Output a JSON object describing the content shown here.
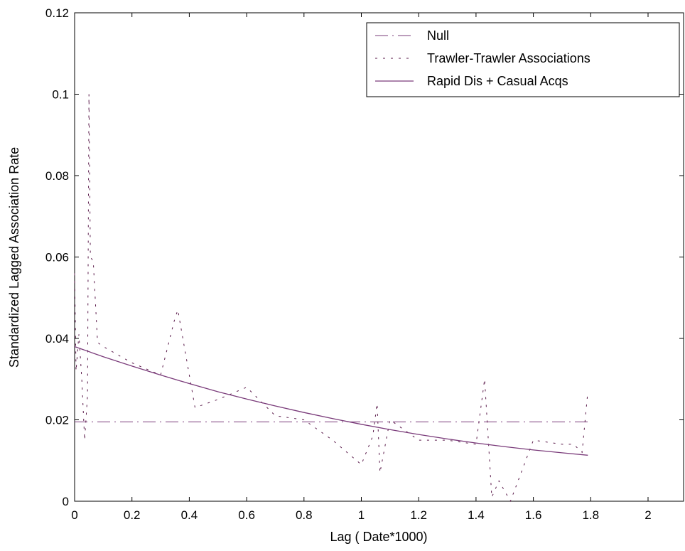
{
  "chart_data": {
    "type": "line",
    "title": "",
    "xlabel": "Lag ( Date*1000)",
    "ylabel": "Standardized Lagged Association Rate",
    "xlim": [
      0,
      2.1
    ],
    "ylim": [
      0,
      0.12
    ],
    "xticks": [
      0,
      0.2,
      0.4,
      0.6,
      0.8,
      1,
      1.2,
      1.4,
      1.6,
      1.8,
      2
    ],
    "xtick_labels": [
      "0",
      "0.2",
      "0.4",
      "0.6",
      "0.8",
      "1",
      "1.2",
      "1.4",
      "1.6",
      "1.8",
      "2"
    ],
    "yticks": [
      0,
      0.02,
      0.04,
      0.06,
      0.08,
      0.1,
      0.12
    ],
    "ytick_labels": [
      "0",
      "0.02",
      "0.04",
      "0.06",
      "0.08",
      "0.1",
      "0.12"
    ],
    "grid": false,
    "legend_position": "top-right",
    "series": [
      {
        "name": "Null",
        "style": "dash-dot",
        "color": "#7a3b7a",
        "x": [
          0,
          1.79
        ],
        "y": [
          0.0195,
          0.0195
        ]
      },
      {
        "name": "Trawler-Trawler Associations",
        "style": "dotted",
        "color": "#5a1a4a",
        "x": [
          0.0,
          0.005,
          0.015,
          0.025,
          0.035,
          0.045,
          0.05,
          0.055,
          0.065,
          0.08,
          0.1,
          0.2,
          0.3,
          0.35,
          0.36,
          0.42,
          0.5,
          0.6,
          0.7,
          0.8,
          0.9,
          1.0,
          1.04,
          1.055,
          1.065,
          1.1,
          1.2,
          1.3,
          1.4,
          1.43,
          1.455,
          1.48,
          1.52,
          1.6,
          1.7,
          1.74,
          1.77,
          1.79
        ],
        "y": [
          0.056,
          0.032,
          0.041,
          0.03,
          0.015,
          0.026,
          0.1,
          0.06,
          0.059,
          0.039,
          0.038,
          0.034,
          0.031,
          0.045,
          0.047,
          0.023,
          0.025,
          0.028,
          0.021,
          0.02,
          0.015,
          0.009,
          0.016,
          0.024,
          0.007,
          0.02,
          0.015,
          0.015,
          0.014,
          0.03,
          0.001,
          0.005,
          0.0,
          0.015,
          0.014,
          0.014,
          0.012,
          0.027
        ]
      },
      {
        "name": "Rapid Dis + Casual Acqs",
        "style": "solid",
        "color": "#7a3b7a",
        "x": [
          0,
          0.1,
          0.2,
          0.3,
          0.4,
          0.5,
          0.6,
          0.7,
          0.8,
          0.9,
          1.0,
          1.1,
          1.2,
          1.3,
          1.4,
          1.5,
          1.6,
          1.7,
          1.79
        ],
        "y": [
          0.038,
          0.0355,
          0.0332,
          0.031,
          0.0289,
          0.0269,
          0.0251,
          0.0234,
          0.0218,
          0.0203,
          0.0189,
          0.0176,
          0.0164,
          0.0153,
          0.0143,
          0.0134,
          0.0126,
          0.0119,
          0.0113
        ]
      }
    ]
  }
}
